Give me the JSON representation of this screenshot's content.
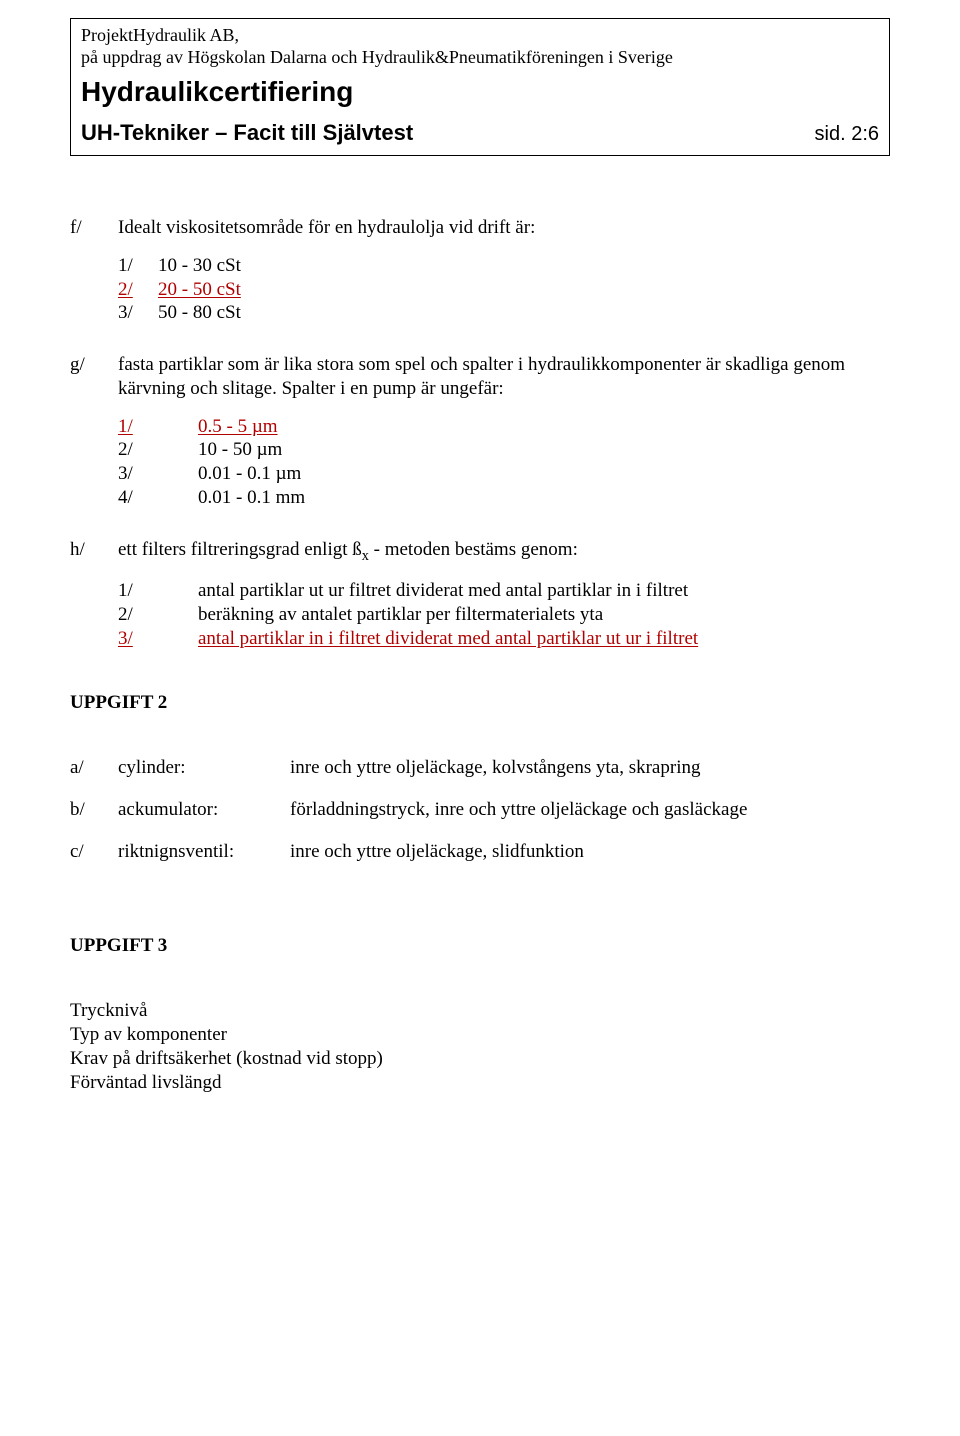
{
  "header": {
    "org": "ProjektHydraulik AB,",
    "org2": "på uppdrag av Högskolan Dalarna och Hydraulik&Pneumatikföreningen i Sverige",
    "title": "Hydraulikcertifiering",
    "sub_left": "UH-Tekniker – Facit till Självtest",
    "sub_right": "sid. 2:6"
  },
  "q_f": {
    "label": "f/",
    "prompt": "Idealt viskositetsområde för en hydraulolja vid drift är:",
    "opts": [
      {
        "n": "1/",
        "t": "10 - 30 cSt"
      },
      {
        "n": "2/",
        "t": "20 - 50 cSt"
      },
      {
        "n": "3/",
        "t": "50 - 80 cSt"
      }
    ],
    "answer_index": 1
  },
  "q_g": {
    "label": "g/",
    "prompt": "fasta partiklar som är lika stora som spel och spalter i hydraulikkomponenter är skadliga genom kärvning och slitage. Spalter i en pump är ungefär:",
    "opts": [
      {
        "n": "1/",
        "t": "0.5 - 5 µm"
      },
      {
        "n": "2/",
        "t": "10 - 50 µm"
      },
      {
        "n": "3/",
        "t": "0.01 - 0.1 µm"
      },
      {
        "n": "4/",
        "t": "0.01 - 0.1 mm"
      }
    ],
    "answer_index": 0
  },
  "q_h": {
    "label": "h/",
    "prompt_pre": "ett filters filtreringsgrad enligt ß",
    "prompt_sub": "x",
    "prompt_post": " - metoden bestäms genom:",
    "opts": [
      {
        "n": "1/",
        "t": "antal partiklar ut ur filtret dividerat med antal partiklar in i filtret"
      },
      {
        "n": "2/",
        "t": "beräkning av antalet partiklar per filtermaterialets yta"
      },
      {
        "n": "3/",
        "t": "antal partiklar in i filtret dividerat med antal partiklar ut ur i filtret"
      }
    ],
    "answer_index": 2
  },
  "uppgift2": {
    "title": "UPPGIFT 2",
    "rows": [
      {
        "l": "a/",
        "term": "cylinder:",
        "val": "inre och yttre oljeläckage, kolvstångens yta, skrapring"
      },
      {
        "l": "b/",
        "term": "ackumulator:",
        "val": "förladdningstryck, inre och yttre oljeläckage och gasläckage"
      },
      {
        "l": "c/",
        "term": "riktnignsventil:",
        "val": "inre och yttre oljeläckage, slidfunktion"
      }
    ]
  },
  "uppgift3": {
    "title": "UPPGIFT 3",
    "lines": [
      "Trycknivå",
      "Typ av komponenter",
      "Krav på driftsäkerhet (kostnad vid stopp)",
      "Förväntad livslängd"
    ]
  }
}
